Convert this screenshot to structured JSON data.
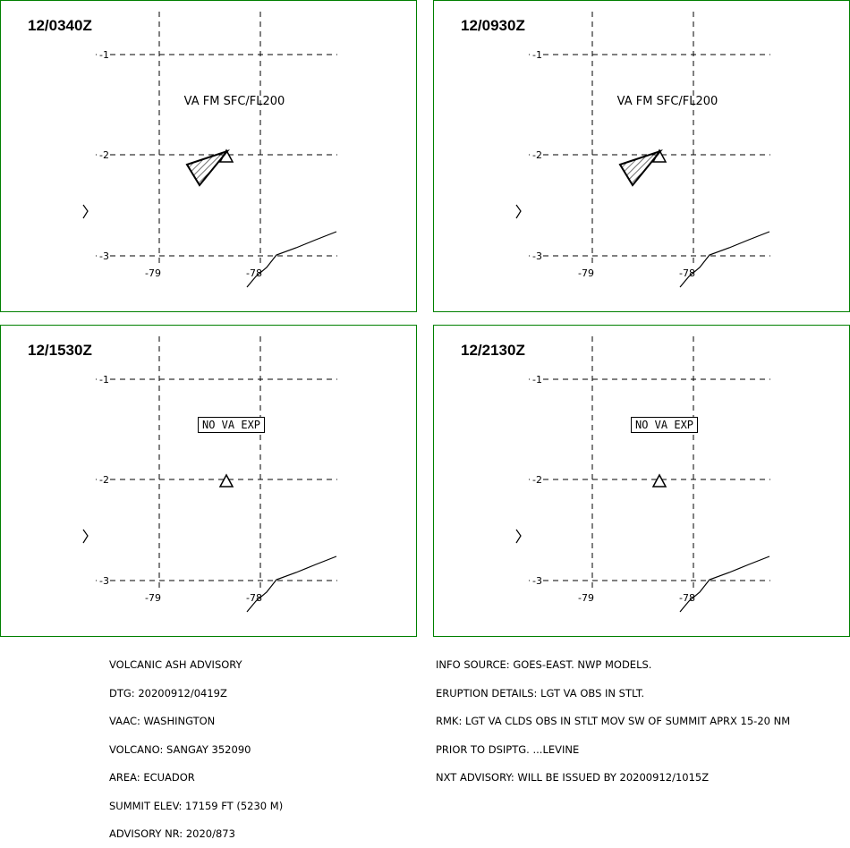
{
  "panels": [
    {
      "time": "12/0340Z",
      "label": "VA FM SFC/FL200",
      "label_type": "text",
      "ash_polygon": true
    },
    {
      "time": "12/0930Z",
      "label": "VA FM SFC/FL200",
      "label_type": "text",
      "ash_polygon": true
    },
    {
      "time": "12/1530Z",
      "label": "NO VA EXP",
      "label_type": "box",
      "ash_polygon": false
    },
    {
      "time": "12/2130Z",
      "label": "NO VA EXP",
      "label_type": "box",
      "ash_polygon": false
    }
  ],
  "grid": {
    "lat_labels": [
      "-1",
      "-2",
      "-3"
    ],
    "lon_labels": [
      "-79",
      "-78"
    ]
  },
  "advisory_left": [
    "VOLCANIC ASH ADVISORY",
    "DTG: 20200912/0419Z",
    "VAAC: WASHINGTON",
    "VOLCANO: SANGAY 352090",
    "AREA: ECUADOR",
    "SUMMIT ELEV: 17159 FT (5230 M)",
    "ADVISORY NR: 2020/873"
  ],
  "advisory_right": [
    "INFO SOURCE: GOES-EAST. NWP MODELS.",
    "ERUPTION DETAILS: LGT VA OBS IN STLT.",
    "RMK: LGT VA CLDS OBS IN STLT MOV SW OF SUMMIT APRX 15-20 NM",
    "PRIOR TO DSIPTG. ...LEVINE",
    "NXT ADVISORY: WILL BE ISSUED BY 20200912/1015Z"
  ],
  "colors": {
    "panel_border": "#008000",
    "lines": "#000000"
  }
}
